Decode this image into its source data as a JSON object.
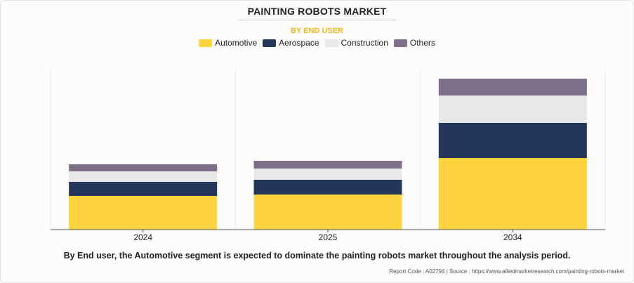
{
  "header": {
    "title": "PAINTING ROBOTS MARKET",
    "subtitle": "BY END USER"
  },
  "colors": {
    "Automotive": "#fdd43f",
    "Aerospace": "#243659",
    "Construction": "#e8e8e8",
    "Others": "#7e6f88"
  },
  "chart_data": {
    "type": "bar",
    "stacked": true,
    "title": "PAINTING ROBOTS MARKET",
    "subtitle": "BY END USER",
    "categories": [
      "2024",
      "2025",
      "2034"
    ],
    "series": [
      {
        "name": "Automotive",
        "values": [
          48,
          50,
          102
        ]
      },
      {
        "name": "Aerospace",
        "values": [
          20,
          21,
          50
        ]
      },
      {
        "name": "Construction",
        "values": [
          15,
          16,
          39
        ]
      },
      {
        "name": "Others",
        "values": [
          10,
          11,
          24
        ]
      }
    ],
    "ylim": [
      0,
      230
    ],
    "grid": false,
    "legend": "top-center"
  },
  "footer": {
    "caption": "By End user, the Automotive segment is expected to dominate the painting robots market throughout the analysis period.",
    "source": "Report Code : A02794  |  Source : https://www.alliedmarketresearch.com/painting-robots-market"
  }
}
